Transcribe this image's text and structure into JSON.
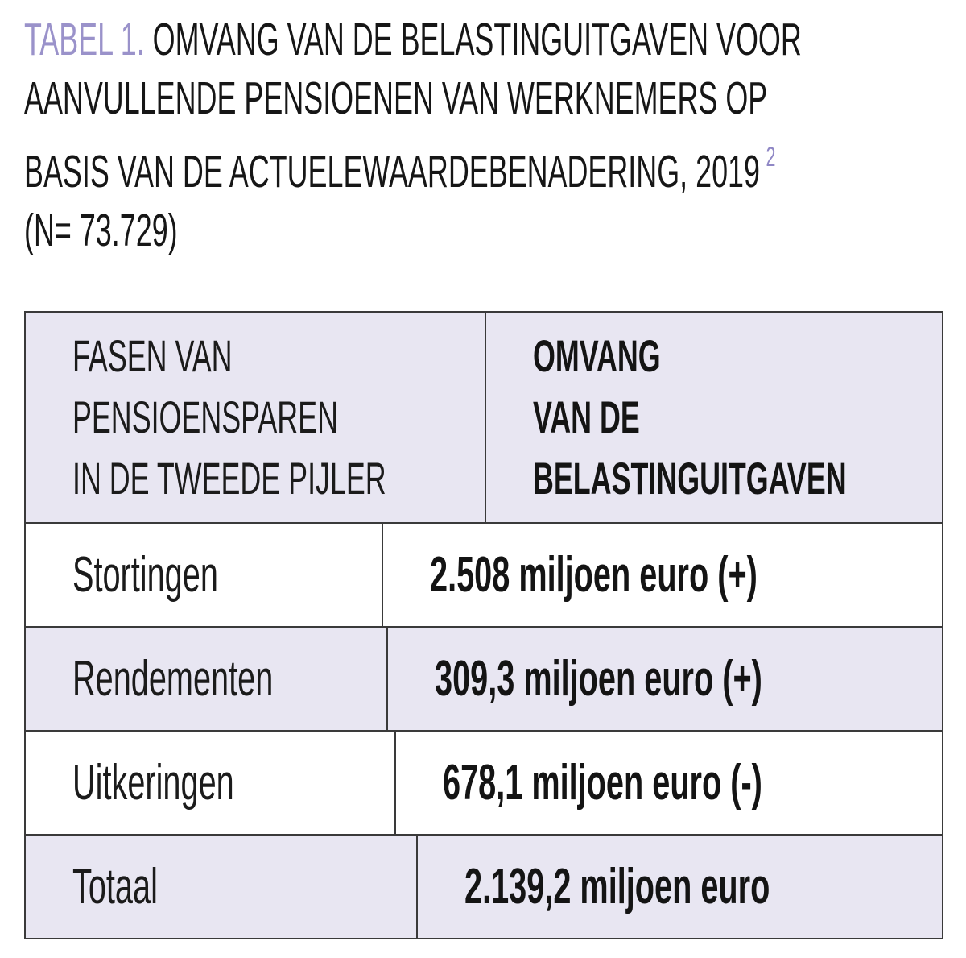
{
  "title": {
    "label": "TABEL 1.",
    "line1_rest": "OMVANG VAN DE BELASTINGUITGAVEN VOOR",
    "line2": "AANVULLENDE PENSIOENEN VAN WERKNEMERS OP",
    "line3": "BASIS VAN DE ACTUELEWAARDEBENADERING, 2019",
    "footnote_marker": "2",
    "sample_note": "(N= 73.729)",
    "accent_color": "#9a92ca",
    "footnote_color": "#8f87c5"
  },
  "table": {
    "header": {
      "col1": {
        "line1": "FASEN VAN",
        "line2": "PENSIOENSPAREN",
        "line3": "IN DE TWEEDE PIJLER"
      },
      "col2": {
        "line1": "OMVANG",
        "line2": "VAN DE",
        "line3": "BELASTINGUITGAVEN"
      }
    },
    "rows": [
      {
        "label": "Stortingen",
        "value": "2.508 miljoen euro (+)"
      },
      {
        "label": "Rendementen",
        "value": "309,3 miljoen euro (+)"
      },
      {
        "label": "Uitkeringen",
        "value": "678,1 miljoen euro (-)"
      },
      {
        "label": "Totaal",
        "value": "2.139,2 miljoen euro"
      }
    ],
    "colors": {
      "stripe_background": "#e8e6f2",
      "border": "#3a3a3a",
      "text": "#1b1b1b"
    }
  }
}
